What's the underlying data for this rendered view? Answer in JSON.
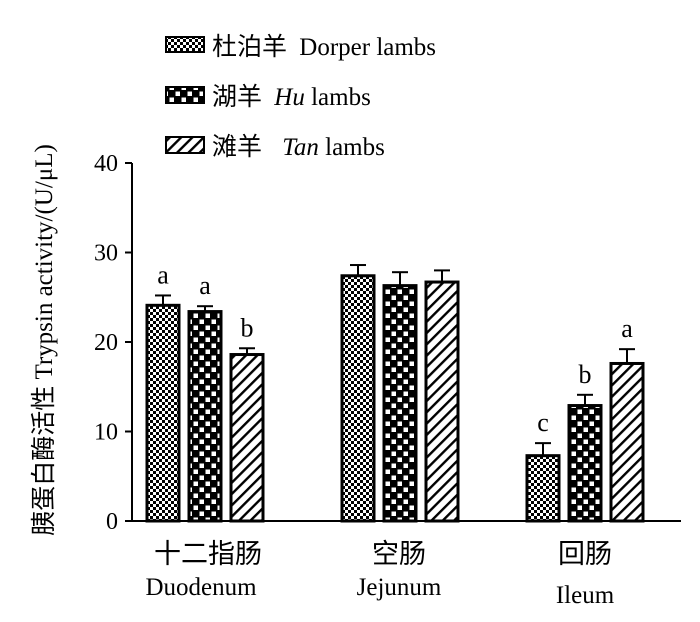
{
  "chart_data": {
    "type": "bar",
    "ylabel": "胰蛋白酶活性 Trypsin activity/(U/μL)",
    "ylim": [
      0,
      40
    ],
    "yticks": [
      0,
      10,
      20,
      30,
      40
    ],
    "categories": [
      {
        "cn": "十二指肠",
        "en": "Duodenum"
      },
      {
        "cn": "空肠",
        "en": "Jejunum"
      },
      {
        "cn": "回肠",
        "en": "Ileum"
      }
    ],
    "series": [
      {
        "name_cn": "杜泊羊",
        "name_en": "Dorper lambs",
        "pattern": "fine-checker",
        "values": [
          24.1,
          27.4,
          7.3
        ],
        "errors": [
          1.1,
          1.2,
          1.4
        ],
        "letters": [
          "a",
          "",
          "c"
        ]
      },
      {
        "name_cn": "湖羊",
        "name_en": "Hu lambs",
        "name_en_italic": "Hu",
        "name_en_rest": " lambs",
        "pattern": "coarse-checker",
        "values": [
          23.4,
          26.3,
          12.9
        ],
        "errors": [
          0.6,
          1.5,
          1.2
        ],
        "letters": [
          "a",
          "",
          "b"
        ]
      },
      {
        "name_cn": "滩羊",
        "name_en": "Tan lambs",
        "name_en_italic": "Tan",
        "name_en_rest": " lambs",
        "pattern": "diagonal",
        "values": [
          18.6,
          26.7,
          17.6
        ],
        "errors": [
          0.7,
          1.3,
          1.6
        ],
        "letters": [
          "b",
          "",
          "a"
        ]
      }
    ],
    "legend_position": "top-left",
    "grid": false
  }
}
